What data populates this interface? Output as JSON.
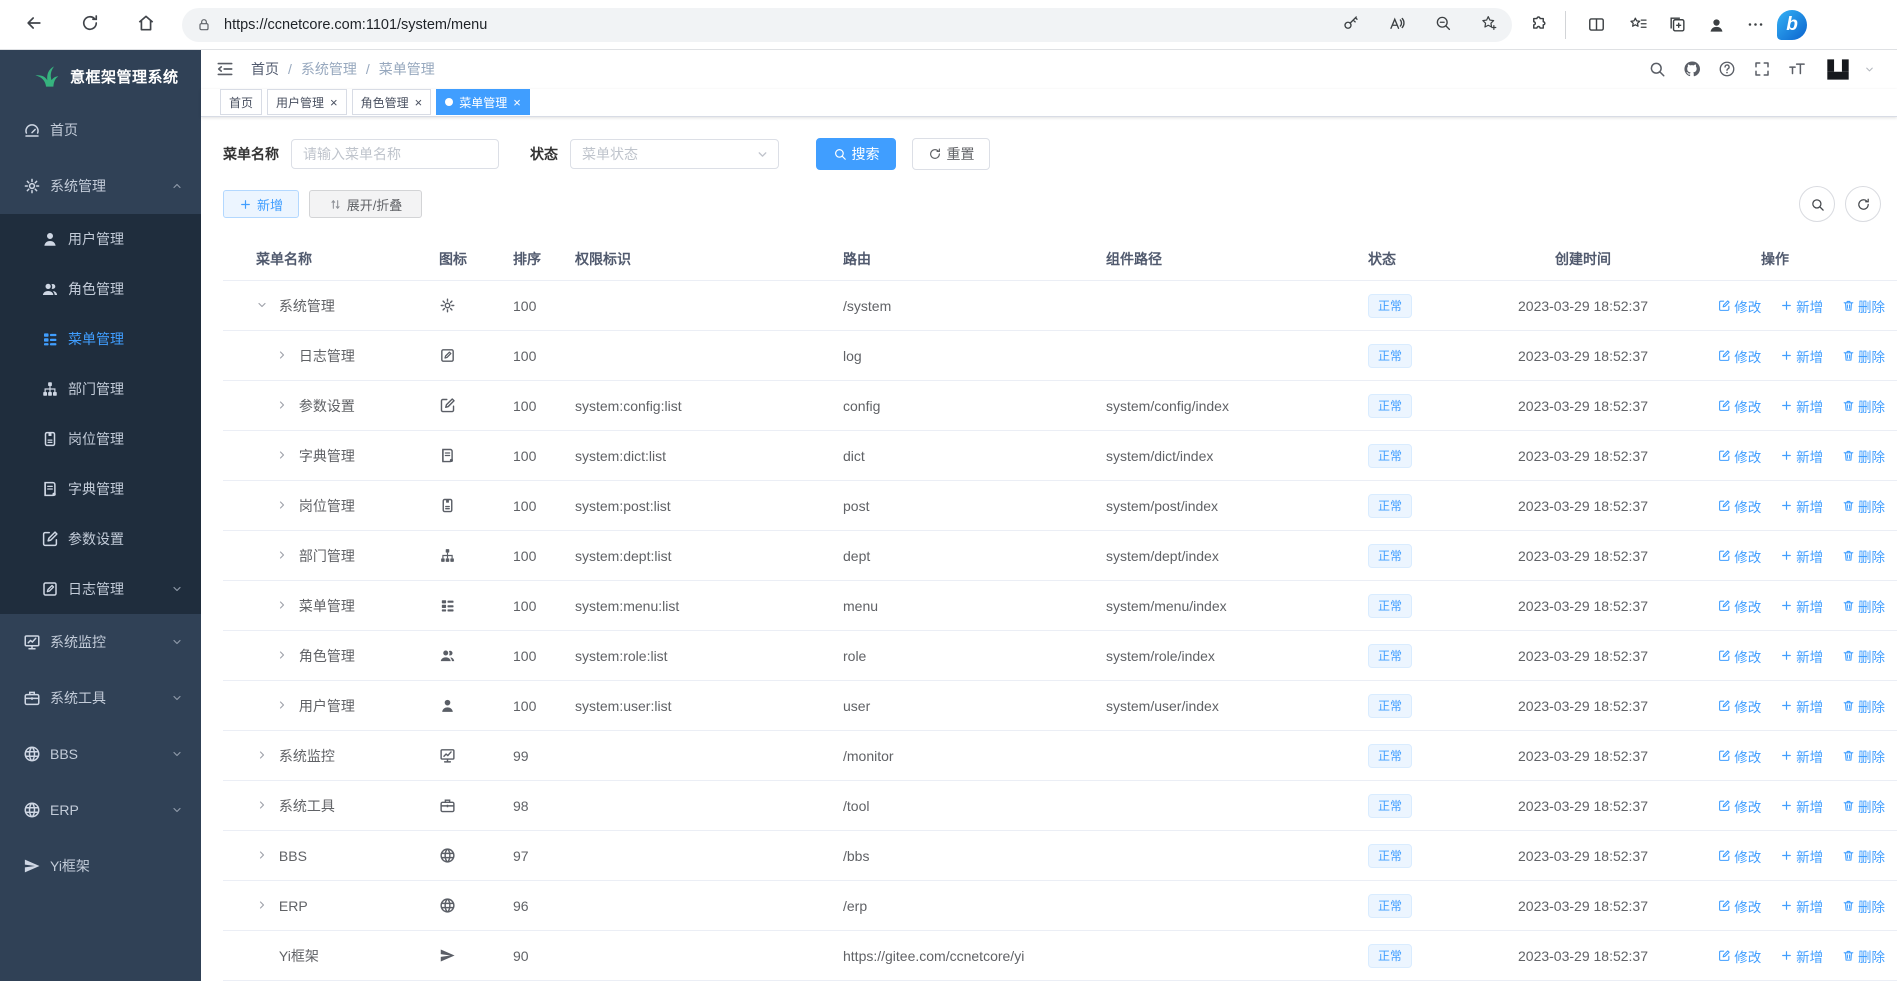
{
  "browser": {
    "url": "https://ccnetcore.com:1101/system/menu",
    "left_icons": [
      {
        "icon": "back-icon"
      },
      {
        "icon": "reload-icon"
      },
      {
        "icon": "home-icon"
      }
    ],
    "pill_icons": [
      {
        "icon": "key-icon"
      },
      {
        "icon": "read-aloud-icon"
      },
      {
        "icon": "zoom-out-icon"
      },
      {
        "icon": "star-plus-icon"
      }
    ],
    "right_icons": [
      {
        "icon": "extensions-icon"
      },
      {
        "icon": "split-screen-icon"
      },
      {
        "icon": "favorites-bar-icon"
      },
      {
        "icon": "collections-icon"
      },
      {
        "icon": "profile-avatar-icon"
      },
      {
        "icon": "more-dots-icon"
      }
    ],
    "bing_label": "b"
  },
  "sidebar": {
    "title": "意框架管理系统",
    "items": [
      {
        "label": "首页",
        "icon": "dashboard-icon"
      },
      {
        "label": "系统管理",
        "icon": "gear-icon",
        "chev": "chev-up-icon"
      },
      {
        "label": "用户管理",
        "icon": "user-icon",
        "mod": "lv1"
      },
      {
        "label": "角色管理",
        "icon": "users-icon",
        "mod": "lv1"
      },
      {
        "label": "菜单管理",
        "icon": "menu-list-icon",
        "mod": "lv1 active"
      },
      {
        "label": "部门管理",
        "icon": "org-tree-icon",
        "mod": "lv1"
      },
      {
        "label": "岗位管理",
        "icon": "id-card-icon",
        "mod": "lv1"
      },
      {
        "label": "字典管理",
        "icon": "book-icon",
        "mod": "lv1"
      },
      {
        "label": "参数设置",
        "icon": "pen-square-icon",
        "mod": "lv1"
      },
      {
        "label": "日志管理",
        "icon": "doc-pen-icon",
        "mod": "lv1",
        "chev": "chev-down-icon"
      },
      {
        "label": "系统监控",
        "icon": "monitor-icon",
        "chev": "chev-down-icon"
      },
      {
        "label": "系统工具",
        "icon": "toolbox-icon",
        "chev": "chev-down-icon"
      },
      {
        "label": "BBS",
        "icon": "globe-icon",
        "chev": "chev-down-icon"
      },
      {
        "label": "ERP",
        "icon": "globe-icon",
        "chev": "chev-down-icon"
      },
      {
        "label": "Yi框架",
        "icon": "plane-icon"
      }
    ]
  },
  "navbar": {
    "breadcrumb_sep": "/",
    "breadcrumb": [
      {
        "label": "首页",
        "mod": "link"
      },
      {
        "label": "系统管理"
      },
      {
        "label": "菜单管理"
      }
    ],
    "right_icons": [
      {
        "icon": "search-icon"
      },
      {
        "icon": "github-icon"
      },
      {
        "icon": "question-icon"
      },
      {
        "icon": "fullscreen-icon"
      },
      {
        "icon": "font-size-icon"
      }
    ]
  },
  "tabs": [
    {
      "label": "首页",
      "close": ""
    },
    {
      "label": "用户管理",
      "close": "×"
    },
    {
      "label": "角色管理",
      "close": "×"
    },
    {
      "label": "菜单管理",
      "close": "×",
      "mod": "active"
    }
  ],
  "filters": {
    "name_label": "菜单名称",
    "name_placeholder": "请输入菜单名称",
    "status_label": "状态",
    "status_placeholder": "菜单状态",
    "search_label": "搜索",
    "reset_label": "重置"
  },
  "toolbar": {
    "add_label": "新增",
    "toggle_label": "展开/折叠"
  },
  "table": {
    "columns": [
      "菜单名称",
      "图标",
      "排序",
      "权限标识",
      "路由",
      "组件路径",
      "状态",
      "创建时间",
      "操作"
    ],
    "actions": {
      "edit": "修改",
      "add": "新增",
      "delete": "删除"
    },
    "rows": [
      {
        "mod": "open",
        "name": "系统管理",
        "icon": "gear-icon",
        "sort": "100",
        "perms": "",
        "path": "/system",
        "component": "",
        "status": "正常",
        "created": "2023-03-29 18:52:37"
      },
      {
        "mod": "lv1 closed",
        "name": "日志管理",
        "icon": "doc-pen-icon",
        "sort": "100",
        "perms": "",
        "path": "log",
        "component": "",
        "status": "正常",
        "created": "2023-03-29 18:52:37"
      },
      {
        "mod": "lv1 closed",
        "name": "参数设置",
        "icon": "pen-square-icon",
        "sort": "100",
        "perms": "system:config:list",
        "path": "config",
        "component": "system/config/index",
        "status": "正常",
        "created": "2023-03-29 18:52:37"
      },
      {
        "mod": "lv1 closed",
        "name": "字典管理",
        "icon": "book-icon",
        "sort": "100",
        "perms": "system:dict:list",
        "path": "dict",
        "component": "system/dict/index",
        "status": "正常",
        "created": "2023-03-29 18:52:37"
      },
      {
        "mod": "lv1 closed",
        "name": "岗位管理",
        "icon": "id-card-icon",
        "sort": "100",
        "perms": "system:post:list",
        "path": "post",
        "component": "system/post/index",
        "status": "正常",
        "created": "2023-03-29 18:52:37"
      },
      {
        "mod": "lv1 closed",
        "name": "部门管理",
        "icon": "org-tree-icon",
        "sort": "100",
        "perms": "system:dept:list",
        "path": "dept",
        "component": "system/dept/index",
        "status": "正常",
        "created": "2023-03-29 18:52:37"
      },
      {
        "mod": "lv1 closed",
        "name": "菜单管理",
        "icon": "menu-list-icon",
        "sort": "100",
        "perms": "system:menu:list",
        "path": "menu",
        "component": "system/menu/index",
        "status": "正常",
        "created": "2023-03-29 18:52:37"
      },
      {
        "mod": "lv1 closed",
        "name": "角色管理",
        "icon": "users-icon",
        "sort": "100",
        "perms": "system:role:list",
        "path": "role",
        "component": "system/role/index",
        "status": "正常",
        "created": "2023-03-29 18:52:37"
      },
      {
        "mod": "lv1 closed",
        "name": "用户管理",
        "icon": "user-icon",
        "sort": "100",
        "perms": "system:user:list",
        "path": "user",
        "component": "system/user/index",
        "status": "正常",
        "created": "2023-03-29 18:52:37"
      },
      {
        "mod": "closed",
        "name": "系统监控",
        "icon": "monitor-icon",
        "sort": "99",
        "perms": "",
        "path": "/monitor",
        "component": "",
        "status": "正常",
        "created": "2023-03-29 18:52:37"
      },
      {
        "mod": "closed",
        "name": "系统工具",
        "icon": "toolbox-icon",
        "sort": "98",
        "perms": "",
        "path": "/tool",
        "component": "",
        "status": "正常",
        "created": "2023-03-29 18:52:37"
      },
      {
        "mod": "closed",
        "name": "BBS",
        "icon": "globe-icon",
        "sort": "97",
        "perms": "",
        "path": "/bbs",
        "component": "",
        "status": "正常",
        "created": "2023-03-29 18:52:37"
      },
      {
        "mod": "closed",
        "name": "ERP",
        "icon": "globe-icon",
        "sort": "96",
        "perms": "",
        "path": "/erp",
        "component": "",
        "status": "正常",
        "created": "2023-03-29 18:52:37"
      },
      {
        "mod": "leaf",
        "name": "Yi框架",
        "icon": "plane-icon",
        "sort": "90",
        "perms": "",
        "path": "https://gitee.com/ccnetcore/yi",
        "component": "",
        "status": "正常",
        "created": "2023-03-29 18:52:37"
      }
    ]
  },
  "colors": {
    "accent": "#409eff",
    "sidebar_bg": "#304156",
    "sidebar_sub_bg": "#1f2d3d",
    "logo_green": "#36b37e",
    "tag_bg": "#ecf5ff",
    "tag_border": "#d9ecff"
  }
}
